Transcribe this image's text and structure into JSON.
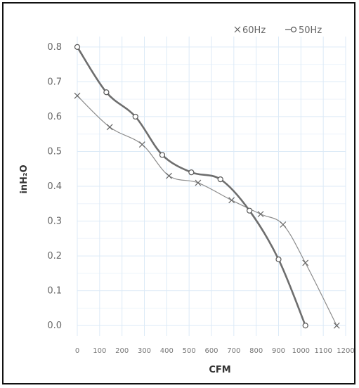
{
  "chart_data": {
    "type": "line",
    "xlabel": "CFM",
    "ylabel": "inH₂O",
    "x_ticks": [
      0,
      100,
      200,
      300,
      400,
      500,
      600,
      700,
      800,
      900,
      1000,
      1100,
      1200
    ],
    "x_tick_labels": [
      "0",
      "100",
      "200",
      "300",
      "400",
      "500",
      "600",
      "700",
      "800",
      "900",
      "1000",
      "1100",
      "1200"
    ],
    "y_ticks": [
      0.0,
      0.1,
      0.2,
      0.3,
      0.4,
      0.5,
      0.6,
      0.7,
      0.8
    ],
    "y_tick_labels": [
      "0.0",
      "0.1",
      "0.2",
      "0.3",
      "0.4",
      "0.5",
      "0.6",
      "0.7",
      "0.8"
    ],
    "xlim": [
      0,
      1200
    ],
    "ylim": [
      -0.03,
      0.83
    ],
    "grid": true,
    "legend_position": "top-right",
    "series": [
      {
        "name": "60Hz",
        "marker": "x",
        "color": "#8c8c8c",
        "x": [
          0,
          145,
          290,
          410,
          540,
          690,
          820,
          920,
          1020,
          1160
        ],
        "y": [
          0.66,
          0.57,
          0.52,
          0.43,
          0.41,
          0.36,
          0.32,
          0.29,
          0.18,
          0.0
        ]
      },
      {
        "name": "50Hz",
        "marker": "o",
        "color": "#6e6e6e",
        "x": [
          0,
          130,
          260,
          380,
          510,
          640,
          770,
          900,
          1020
        ],
        "y": [
          0.8,
          0.67,
          0.6,
          0.49,
          0.44,
          0.42,
          0.33,
          0.19,
          0.0
        ]
      }
    ]
  }
}
